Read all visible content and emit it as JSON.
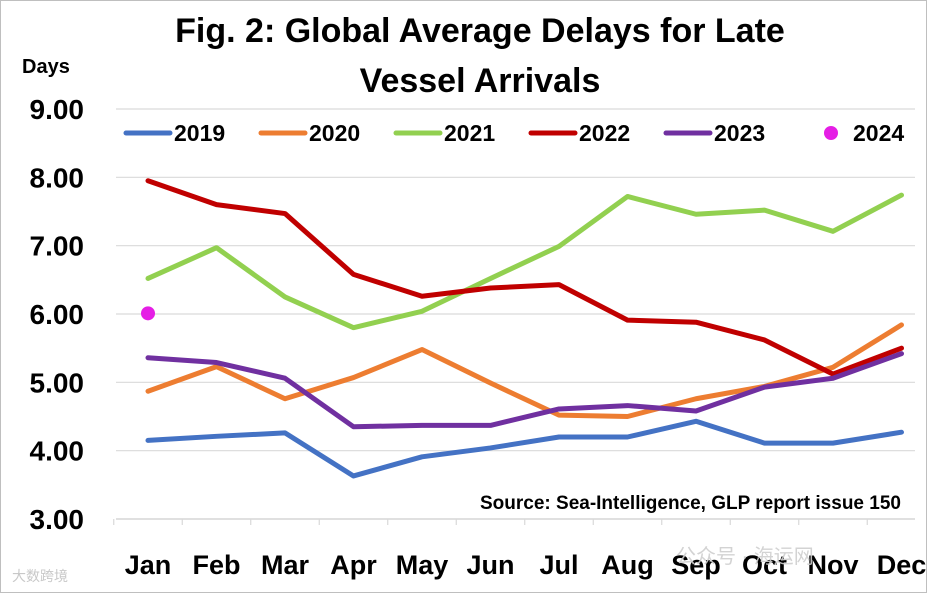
{
  "chart_data": {
    "type": "line",
    "title_line1": "Fig. 2: Global Average Delays for Late",
    "title_line2": "Vessel Arrivals",
    "ylabel": "Days",
    "xlabel": "",
    "ylim": [
      3,
      9
    ],
    "yticks": [
      3,
      4,
      5,
      6,
      7,
      8,
      9
    ],
    "ytick_labels": [
      "3.00",
      "4.00",
      "5.00",
      "6.00",
      "7.00",
      "8.00",
      "9.00"
    ],
    "grid": true,
    "legend": "top",
    "categories": [
      "Jan",
      "Feb",
      "Mar",
      "Apr",
      "May",
      "Jun",
      "Jul",
      "Aug",
      "Sep",
      "Oct",
      "Nov",
      "Dec"
    ],
    "series": [
      {
        "name": "2019",
        "color": "#4472C4",
        "marker": "none",
        "values": [
          4.15,
          4.21,
          4.26,
          3.63,
          3.91,
          4.04,
          4.2,
          4.2,
          4.43,
          4.11,
          4.11,
          4.27
        ]
      },
      {
        "name": "2020",
        "color": "#ED7D31",
        "marker": "none",
        "values": [
          4.87,
          5.23,
          4.76,
          5.07,
          5.48,
          4.99,
          4.52,
          4.5,
          4.76,
          4.94,
          5.22,
          5.84
        ]
      },
      {
        "name": "2021",
        "color": "#92D050",
        "marker": "none",
        "values": [
          6.52,
          6.97,
          6.25,
          5.8,
          6.04,
          6.52,
          6.99,
          7.72,
          7.46,
          7.52,
          7.21,
          7.74
        ]
      },
      {
        "name": "2022",
        "color": "#C00000",
        "marker": "none",
        "values": [
          7.95,
          7.6,
          7.47,
          6.58,
          6.26,
          6.38,
          6.43,
          5.91,
          5.88,
          5.62,
          5.12,
          5.5
        ]
      },
      {
        "name": "2023",
        "color": "#7030A0",
        "marker": "none",
        "values": [
          5.36,
          5.29,
          5.06,
          4.35,
          4.37,
          4.37,
          4.61,
          4.66,
          4.58,
          4.93,
          5.06,
          5.42
        ]
      },
      {
        "name": "2024",
        "color": "#E51EE5",
        "marker": "circle",
        "values": [
          6.01,
          null,
          null,
          null,
          null,
          null,
          null,
          null,
          null,
          null,
          null,
          null
        ]
      }
    ],
    "source": "Source: Sea-Intelligence, GLP report issue 150"
  },
  "watermarks": {
    "left": "大数跨境",
    "right": "公众号 · 海运网"
  }
}
